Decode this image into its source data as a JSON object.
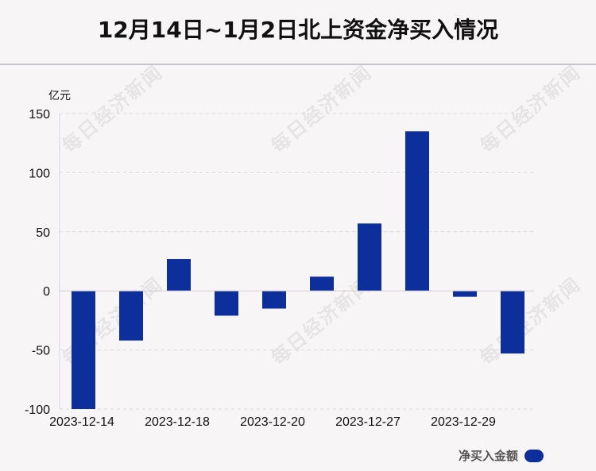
{
  "title": "12月14日~1月2日北上资金净买入情况",
  "watermark": "每日经济新闻",
  "colors": {
    "bar": "#0c2f9c",
    "background": "#f8f5f7"
  },
  "chart_data": {
    "type": "bar",
    "title": "12月14日~1月2日北上资金净买入情况",
    "ylabel": "亿元",
    "ylim": [
      -100,
      150
    ],
    "yticks": [
      150,
      100,
      50,
      0,
      -50,
      -100
    ],
    "grid": true,
    "legend_position": "bottom-right",
    "x_tick_labels": [
      "2023-12-14",
      "2023-12-18",
      "2023-12-20",
      "2023-12-27",
      "2023-12-29"
    ],
    "series": [
      {
        "name": "净买入金额",
        "color": "#0c2f9c",
        "values": [
          -100,
          -42,
          27,
          -21,
          -15,
          12,
          57,
          135,
          -5,
          -53
        ]
      }
    ]
  }
}
